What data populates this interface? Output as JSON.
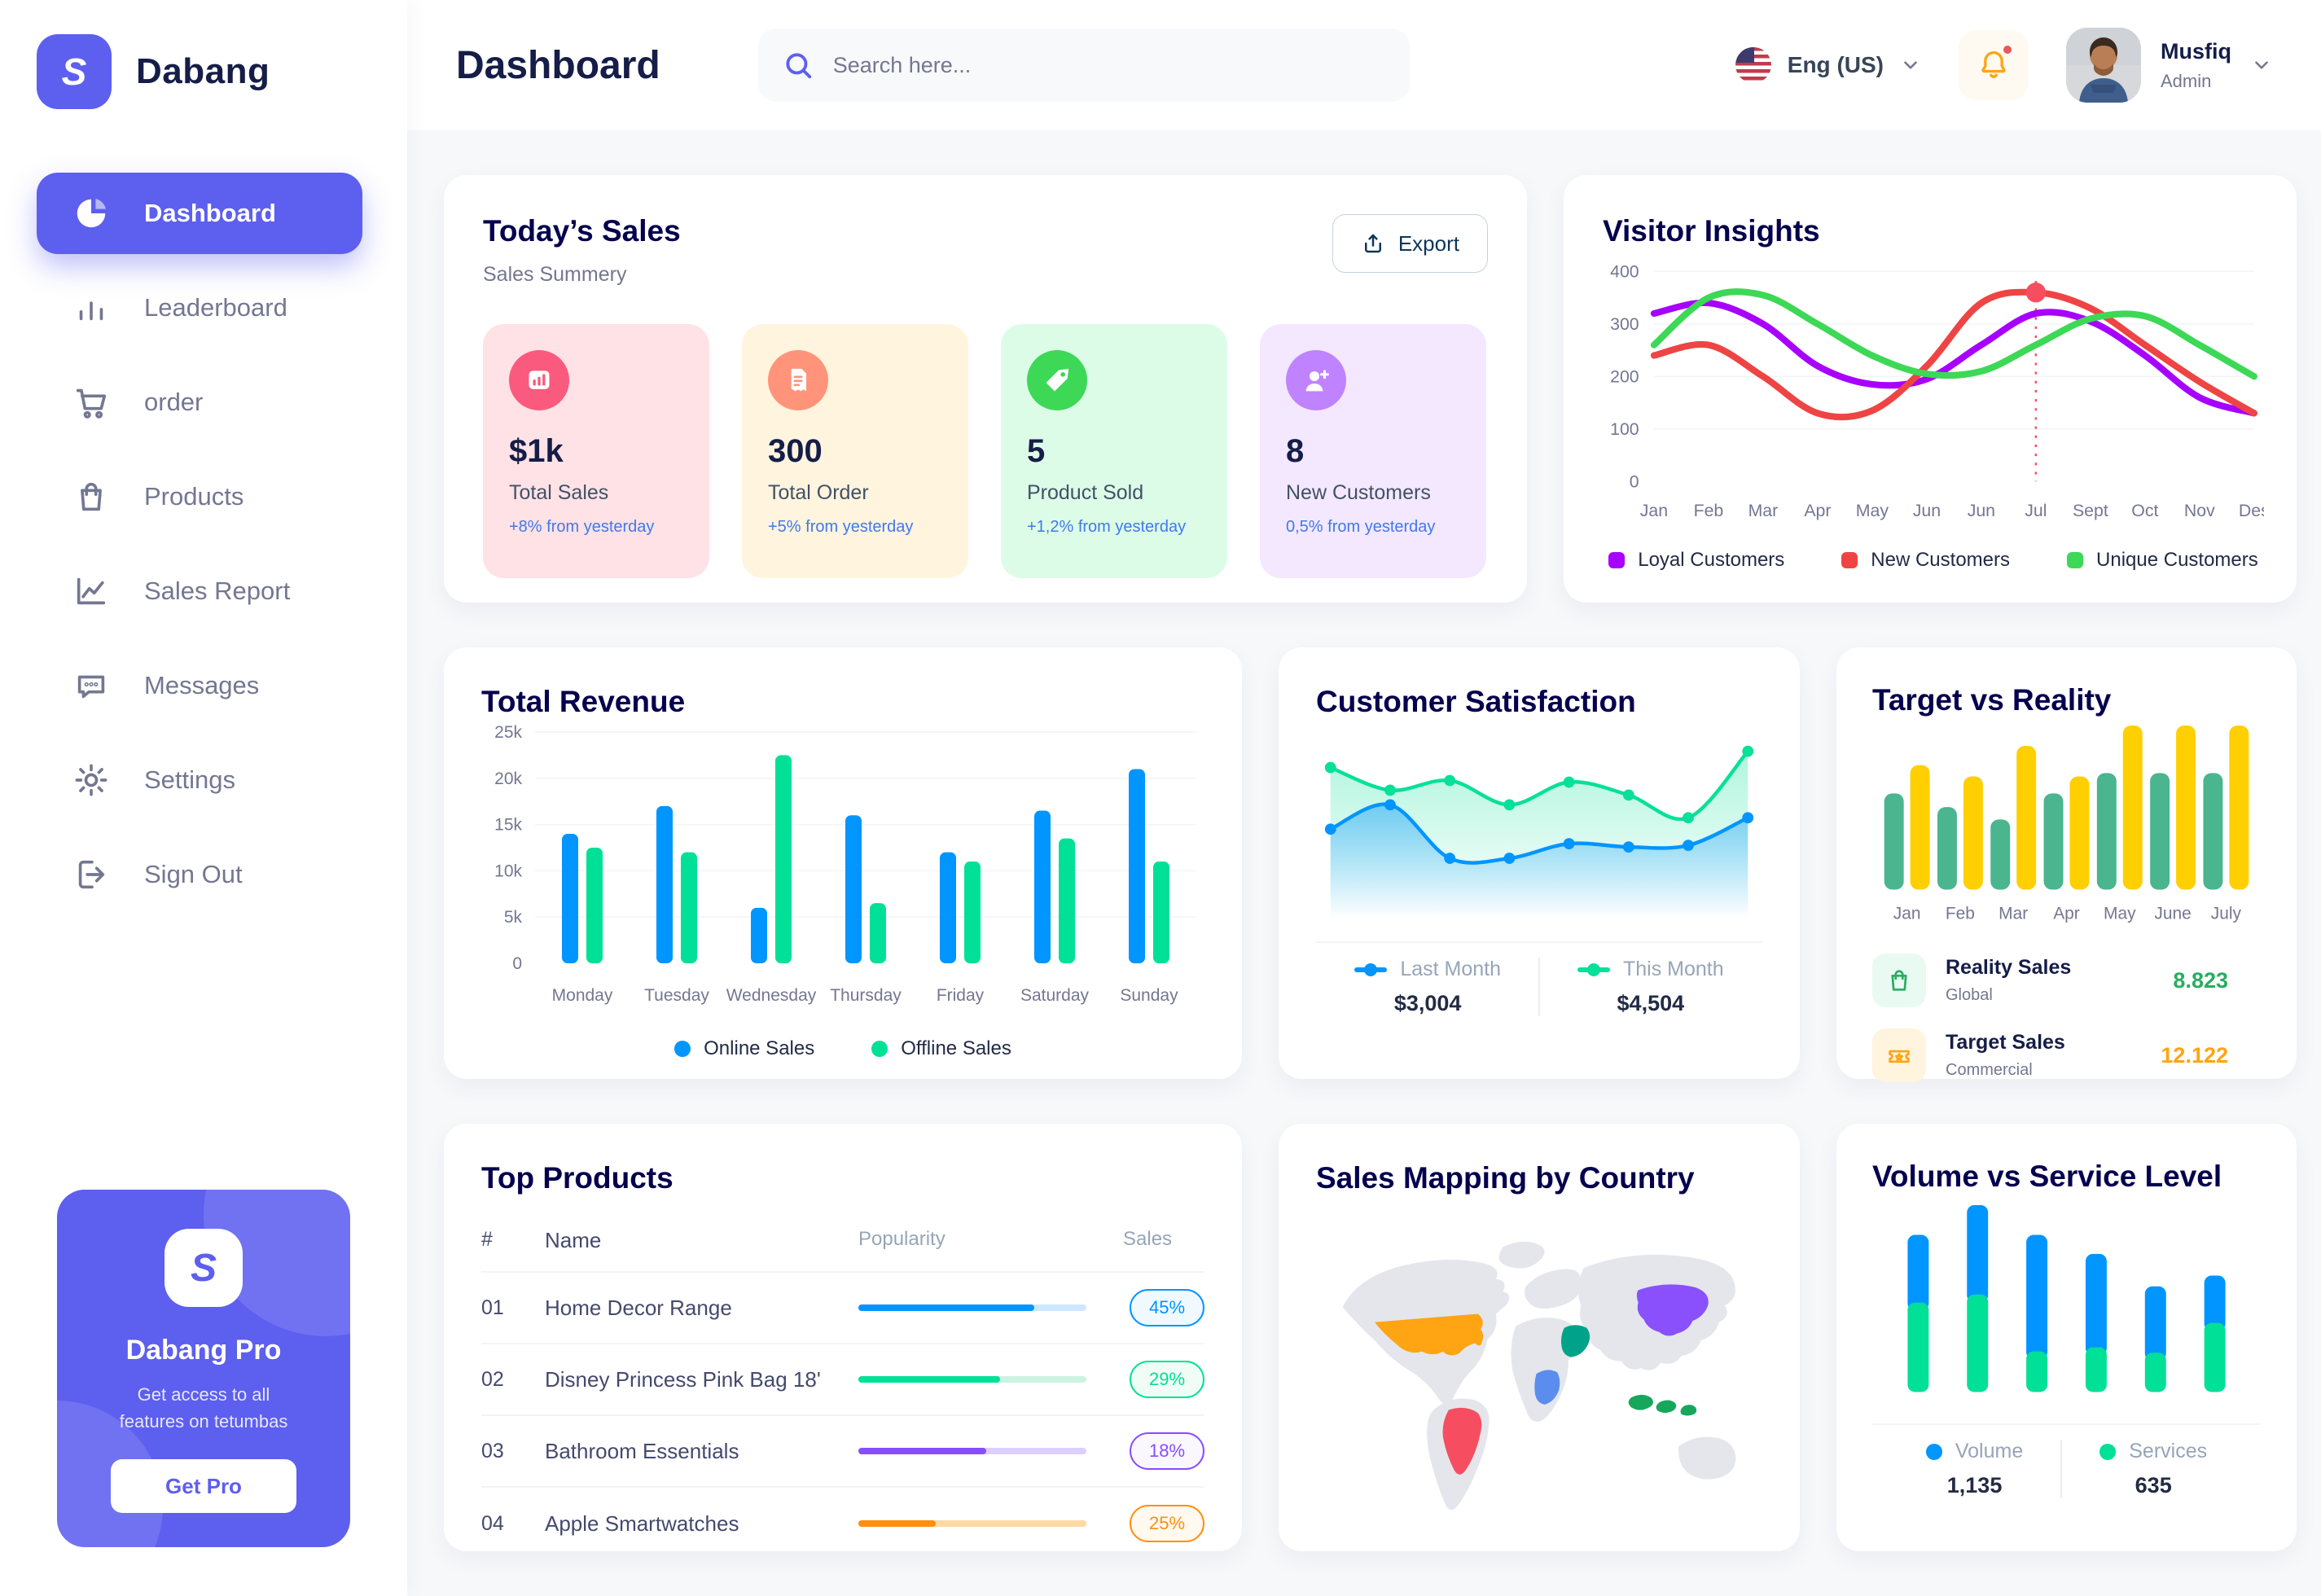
{
  "app": {
    "brand": "Dabang",
    "page_title": "Dashboard"
  },
  "header": {
    "search_placeholder": "Search here...",
    "language": "Eng (US)",
    "user": {
      "name": "Musfiq",
      "role": "Admin"
    }
  },
  "sidebar": {
    "items": [
      {
        "id": "dashboard",
        "label": "Dashboard",
        "icon": "pie",
        "active": true
      },
      {
        "id": "leaderboard",
        "label": "Leaderboard",
        "icon": "bars",
        "active": false
      },
      {
        "id": "order",
        "label": "order",
        "icon": "cart",
        "active": false
      },
      {
        "id": "products",
        "label": "Products",
        "icon": "bag",
        "active": false
      },
      {
        "id": "sales-report",
        "label": "Sales Report",
        "icon": "chart",
        "active": false
      },
      {
        "id": "messages",
        "label": "Messages",
        "icon": "chat",
        "active": false
      },
      {
        "id": "settings",
        "label": "Settings",
        "icon": "gear",
        "active": false
      },
      {
        "id": "sign-out",
        "label": "Sign Out",
        "icon": "signout",
        "active": false
      }
    ],
    "pro": {
      "title": "Dabang Pro",
      "subtitle": "Get access to all features on tetumbas",
      "button": "Get Pro"
    }
  },
  "today_sales": {
    "title": "Today’s Sales",
    "subtitle": "Sales Summery",
    "export_label": "Export",
    "cards": [
      {
        "value": "$1k",
        "label": "Total Sales",
        "delta": "+8% from yesterday",
        "bg": "#FFE2E5",
        "circle": "#FA5A7D",
        "icon": "bar-card"
      },
      {
        "value": "300",
        "label": "Total Order",
        "delta": "+5% from yesterday",
        "bg": "#FFF4DE",
        "circle": "#FF947A",
        "icon": "receipt"
      },
      {
        "value": "5",
        "label": "Product Sold",
        "delta": "+1,2% from yesterday",
        "bg": "#DCFCE7",
        "circle": "#3CD856",
        "icon": "tag"
      },
      {
        "value": "8",
        "label": "New Customers",
        "delta": "0,5% from yesterday",
        "bg": "#F3E8FF",
        "circle": "#BF83FF",
        "icon": "user-plus"
      }
    ]
  },
  "visitor_insights": {
    "title": "Visitor Insights",
    "type": "line",
    "months": [
      "Jan",
      "Feb",
      "Mar",
      "Apr",
      "May",
      "Jun",
      "Jun",
      "Jul",
      "Sept",
      "Oct",
      "Nov",
      "Des"
    ],
    "ylim": [
      0,
      400
    ],
    "yticks": [
      0,
      100,
      200,
      300,
      400
    ],
    "series": [
      {
        "name": "Loyal Customers",
        "color": "#A700FF",
        "values": [
          320,
          340,
          300,
          220,
          185,
          195,
          260,
          320,
          305,
          240,
          160,
          130
        ]
      },
      {
        "name": "New Customers",
        "color": "#EF4444",
        "values": [
          240,
          260,
          200,
          130,
          135,
          220,
          340,
          360,
          330,
          260,
          190,
          130
        ]
      },
      {
        "name": "Unique Customers",
        "color": "#3CD856",
        "values": [
          260,
          350,
          355,
          300,
          240,
          205,
          210,
          260,
          310,
          315,
          260,
          200
        ]
      }
    ],
    "marker": {
      "series": 1,
      "index": 7,
      "value": 360
    }
  },
  "total_revenue": {
    "title": "Total Revenue",
    "type": "bar",
    "days": [
      "Monday",
      "Tuesday",
      "Wednesday",
      "Thursday",
      "Friday",
      "Saturday",
      "Sunday"
    ],
    "ylim": [
      0,
      25
    ],
    "ytick_labels": [
      "0",
      "5k",
      "10k",
      "15k",
      "20k",
      "25k"
    ],
    "series": [
      {
        "name": "Online Sales",
        "color": "#0095FF",
        "values": [
          14,
          17,
          6,
          16,
          12,
          16.5,
          21
        ]
      },
      {
        "name": "Offline Sales",
        "color": "#00E096",
        "values": [
          12.5,
          12,
          22.5,
          6.5,
          11,
          13.5,
          11
        ]
      }
    ]
  },
  "customer_satisfaction": {
    "title": "Customer Satisfaction",
    "type": "area",
    "series": [
      {
        "name": "Last Month",
        "color": "#0095FF",
        "total": "$3,004",
        "points": [
          40,
          55,
          22,
          22,
          31,
          29,
          30,
          47
        ]
      },
      {
        "name": "This Month",
        "color": "#07E098",
        "total": "$4,504",
        "points": [
          78,
          64,
          70,
          55,
          69,
          61,
          47,
          88
        ]
      }
    ]
  },
  "target_vs_reality": {
    "title": "Target vs Reality",
    "type": "bar",
    "months": [
      "Jan",
      "Feb",
      "Mar",
      "Apr",
      "May",
      "June",
      "July"
    ],
    "series": [
      {
        "name": "Reality Sales",
        "sub": "Global",
        "color": "#4AB58E",
        "icon_bg": "#E9FAF3",
        "icon": "bag",
        "total": "8.823",
        "total_color": "#27AE60",
        "values": [
          8.5,
          7.3,
          6.2,
          8.5,
          10.3,
          10.3,
          10.3
        ]
      },
      {
        "name": "Target Sales",
        "sub": "Commercial",
        "color": "#FFCF00",
        "icon_bg": "#FFF4DE",
        "icon": "ticket",
        "total": "12.122",
        "total_color": "#FFA412",
        "values": [
          11,
          10,
          12.7,
          10,
          14.5,
          14.5,
          14.5
        ]
      }
    ]
  },
  "top_products": {
    "title": "Top Products",
    "headers": [
      "#",
      "Name",
      "Popularity",
      "Sales"
    ],
    "rows": [
      {
        "num": "01",
        "name": "Home Decor Range",
        "fill": 77,
        "sales": "45%",
        "color": "#0095FF",
        "track": "#CDE7FF",
        "badge_bg": "#F0F9FF"
      },
      {
        "num": "02",
        "name": "Disney Princess Pink Bag 18'",
        "fill": 62,
        "sales": "29%",
        "color": "#00E096",
        "track": "#CBF3E2",
        "badge_bg": "#F0FDF7"
      },
      {
        "num": "03",
        "name": "Bathroom Essentials",
        "fill": 56,
        "sales": "18%",
        "color": "#884DFF",
        "track": "#DCCFFF",
        "badge_bg": "#FAF7FF"
      },
      {
        "num": "04",
        "name": "Apple Smartwatches",
        "fill": 34,
        "sales": "25%",
        "color": "#FF8F0D",
        "track": "#FFD9A3",
        "badge_bg": "#FFF9F0"
      }
    ]
  },
  "sales_map": {
    "title": "Sales Mapping by Country",
    "land_color": "#E4E6EB",
    "countries": [
      {
        "id": "usa",
        "name": "United States",
        "color": "#FFA412"
      },
      {
        "id": "brazil",
        "name": "Brazil",
        "color": "#F64E60"
      },
      {
        "id": "saudi",
        "name": "Saudi Arabia",
        "color": "#00A389"
      },
      {
        "id": "drc",
        "name": "DR Congo",
        "color": "#5A8DEE"
      },
      {
        "id": "china",
        "name": "China",
        "color": "#8950FC"
      },
      {
        "id": "indonesia",
        "name": "Indonesia",
        "color": "#16A75C"
      }
    ]
  },
  "volume_service": {
    "title": "Volume vs Service Level",
    "type": "stacked-bar",
    "series": [
      {
        "name": "Volume",
        "color": "#0095FF",
        "total": "1,135",
        "values": [
          250,
          330,
          430,
          345,
          245,
          175
        ]
      },
      {
        "name": "Services",
        "color": "#00E096",
        "total": "635",
        "values": [
          330,
          360,
          150,
          165,
          145,
          255
        ]
      }
    ]
  }
}
